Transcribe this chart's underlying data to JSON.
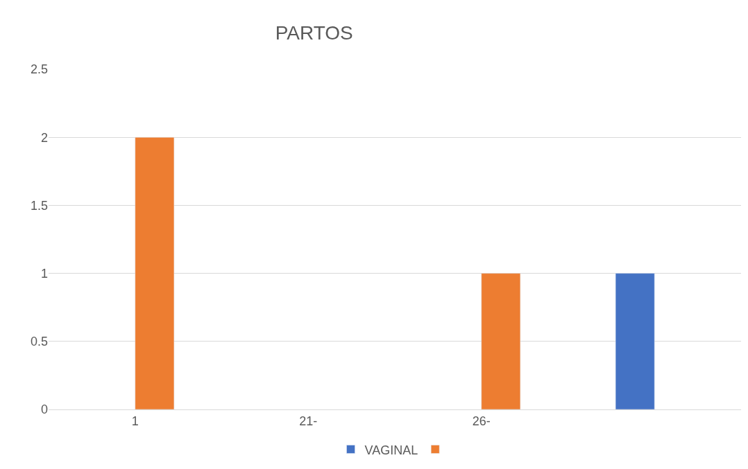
{
  "chart_data": {
    "type": "bar",
    "title": "PARTOS",
    "categories": [
      "1",
      "21-",
      "26-",
      null
    ],
    "series": [
      {
        "name": "VAGINAL",
        "color": "#4472c4",
        "values": [
          null,
          null,
          null,
          1
        ]
      },
      {
        "color": "#ed7d31",
        "values": [
          2,
          null,
          1,
          null
        ]
      }
    ],
    "ylim": [
      0,
      2.5
    ],
    "yticks": [
      0,
      0.5,
      1,
      1.5,
      2,
      2.5
    ],
    "grid": "y",
    "legend": "bottom"
  }
}
